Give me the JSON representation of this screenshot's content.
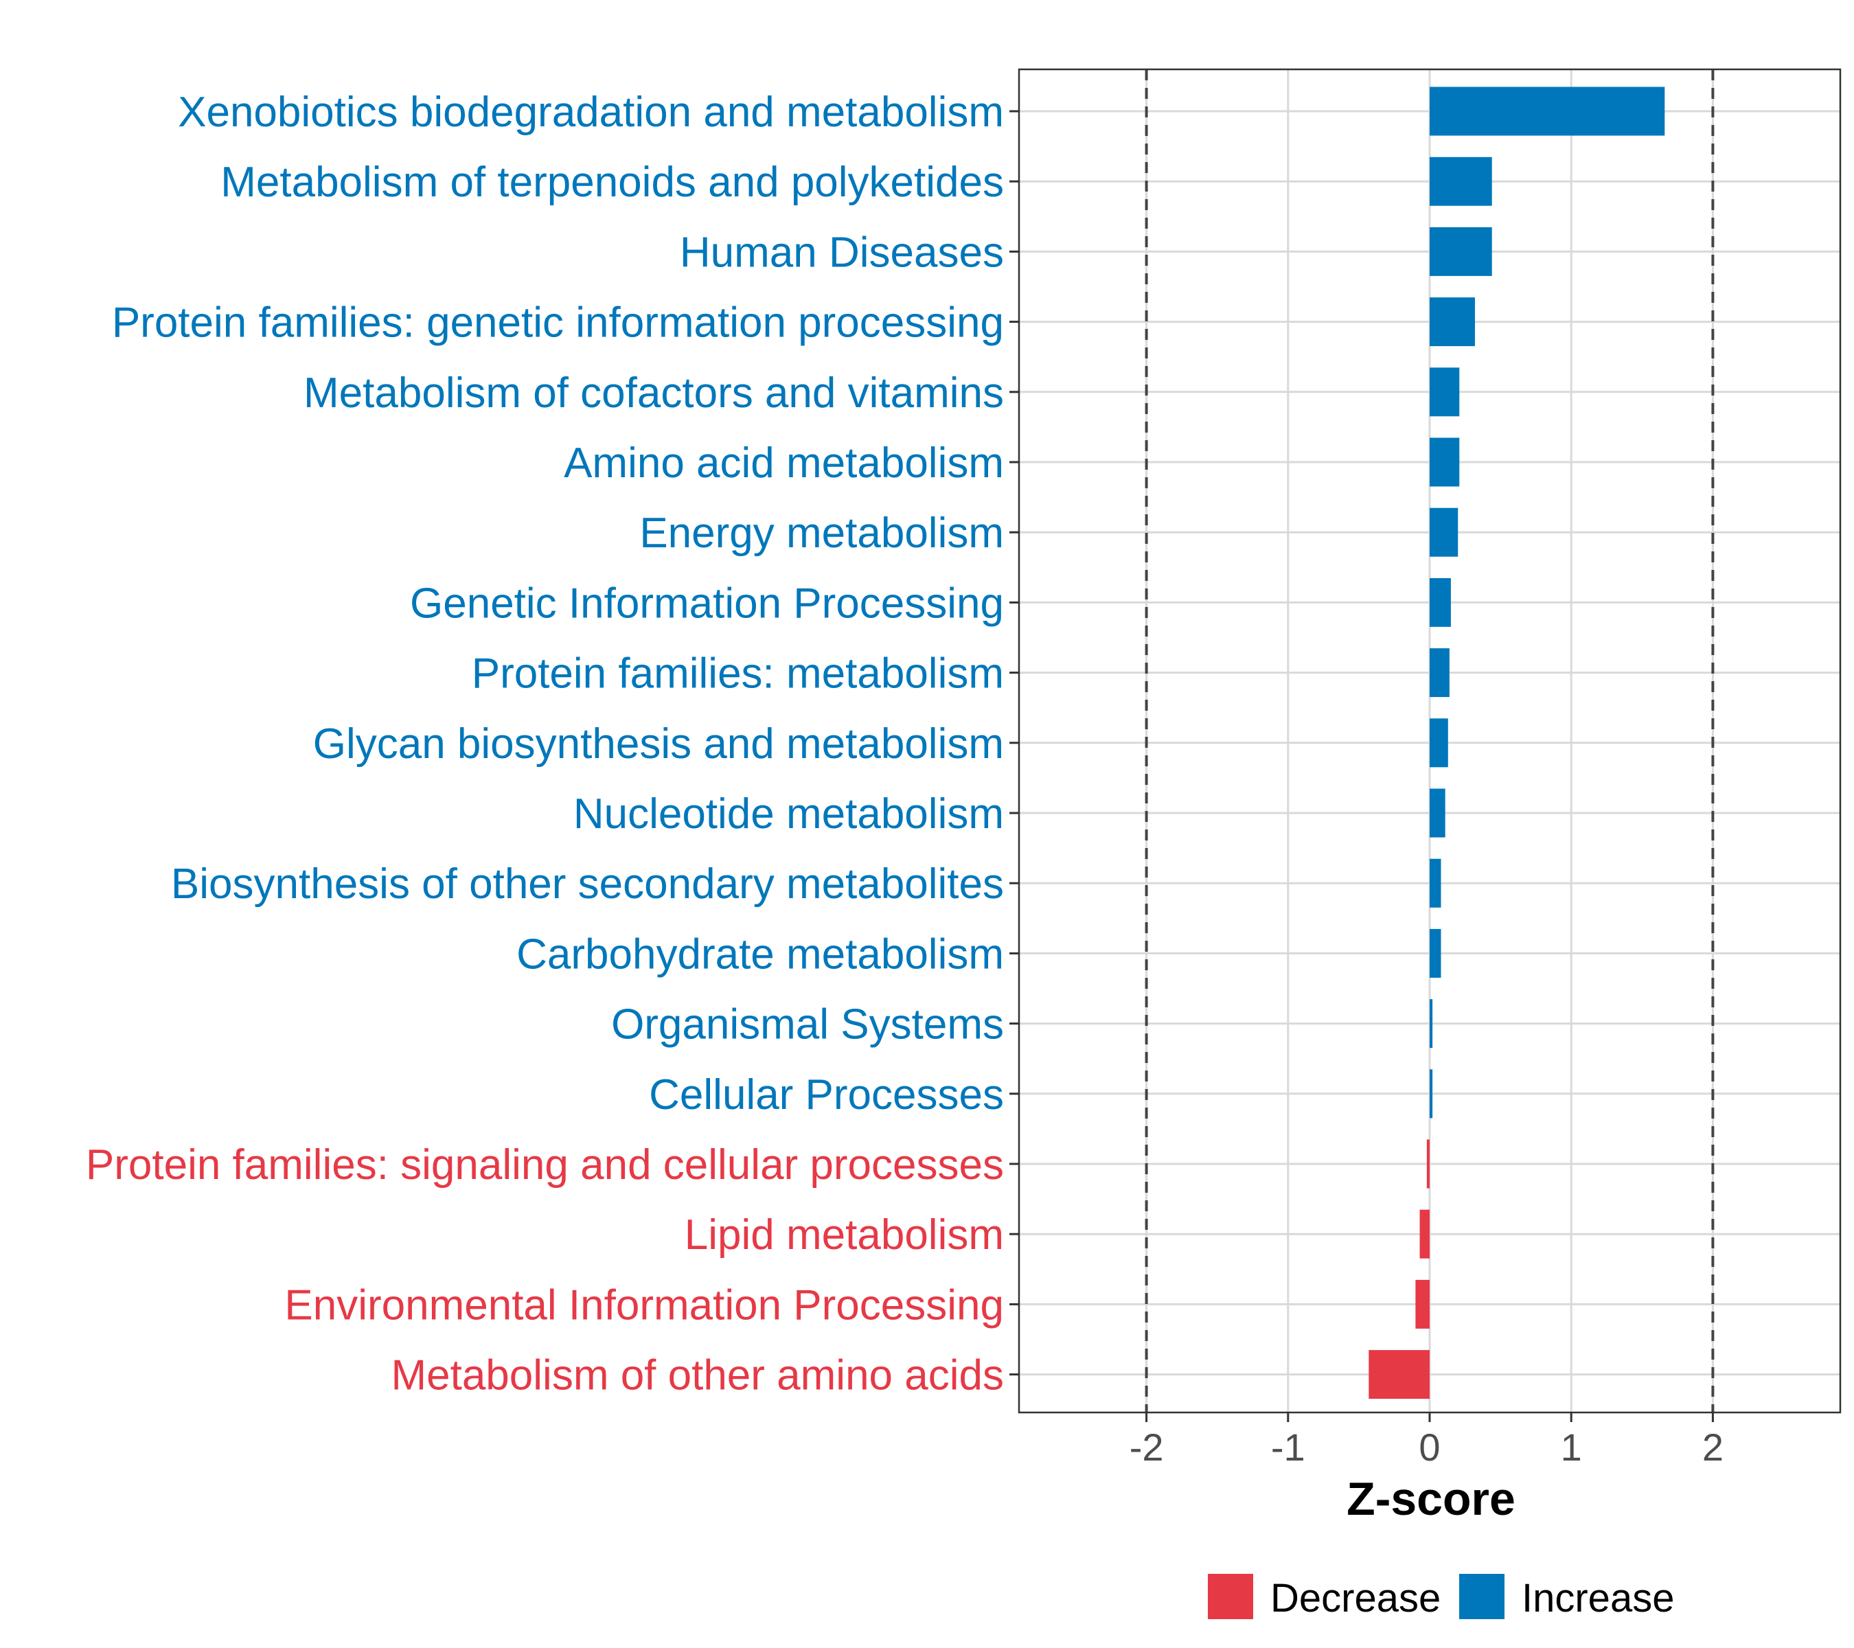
{
  "chart_data": {
    "type": "bar",
    "orientation": "horizontal",
    "title": "",
    "xlabel": "Z-score",
    "ylabel": "",
    "xlim": [
      -2.9,
      2.9
    ],
    "x_ticks": [
      -2,
      -1,
      0,
      1,
      2
    ],
    "x_tick_labels": [
      "-2",
      "-1",
      "0",
      "1",
      "2"
    ],
    "reference_lines": [
      -2,
      2
    ],
    "grid": true,
    "legend_position": "bottom",
    "colors": {
      "Increase": "#0077bb",
      "Decrease": "#e63946"
    },
    "legend": [
      {
        "label": "Decrease",
        "color": "#e63946"
      },
      {
        "label": "Increase",
        "color": "#0077bb"
      }
    ],
    "categories": [
      "Xenobiotics biodegradation and metabolism",
      "Metabolism of terpenoids and polyketides",
      "Human Diseases",
      "Protein families: genetic information processing",
      "Metabolism of cofactors and vitamins",
      "Amino acid metabolism",
      "Energy metabolism",
      "Genetic Information Processing",
      "Protein families: metabolism",
      "Glycan biosynthesis and metabolism",
      "Nucleotide metabolism",
      "Biosynthesis of other secondary metabolites",
      "Carbohydrate metabolism",
      "Organismal Systems",
      "Cellular Processes",
      "Protein families: signaling and cellular processes",
      "Lipid metabolism",
      "Environmental Information Processing",
      "Metabolism of other amino acids"
    ],
    "values": [
      1.66,
      0.44,
      0.44,
      0.32,
      0.21,
      0.21,
      0.2,
      0.15,
      0.14,
      0.13,
      0.11,
      0.08,
      0.08,
      0.02,
      0.02,
      -0.02,
      -0.07,
      -0.1,
      -0.43
    ],
    "groups": [
      "Increase",
      "Increase",
      "Increase",
      "Increase",
      "Increase",
      "Increase",
      "Increase",
      "Increase",
      "Increase",
      "Increase",
      "Increase",
      "Increase",
      "Increase",
      "Increase",
      "Increase",
      "Decrease",
      "Decrease",
      "Decrease",
      "Decrease"
    ]
  }
}
